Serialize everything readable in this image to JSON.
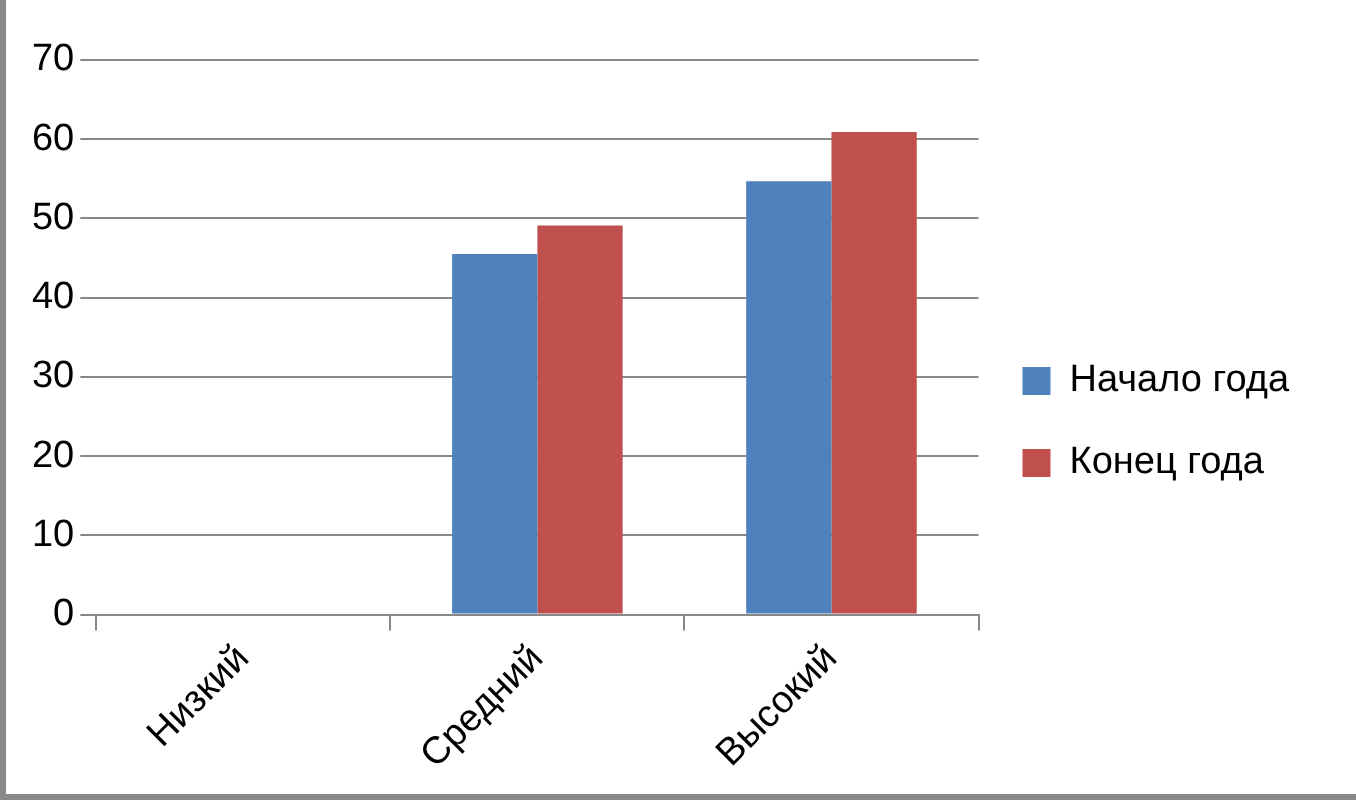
{
  "chart_data": {
    "type": "bar",
    "categories": [
      "Низкий",
      "Средний",
      "Высокий"
    ],
    "series": [
      {
        "name": "Начало года",
        "color": "#4f81bd",
        "values": [
          0,
          45.5,
          54.7
        ]
      },
      {
        "name": "Конец года",
        "color": "#c0504d",
        "values": [
          0,
          49.1,
          60.9
        ]
      }
    ],
    "ylim": [
      0,
      70
    ],
    "yticks": [
      0,
      10,
      20,
      30,
      40,
      50,
      60,
      70
    ],
    "grid": "y",
    "legend": "right"
  }
}
